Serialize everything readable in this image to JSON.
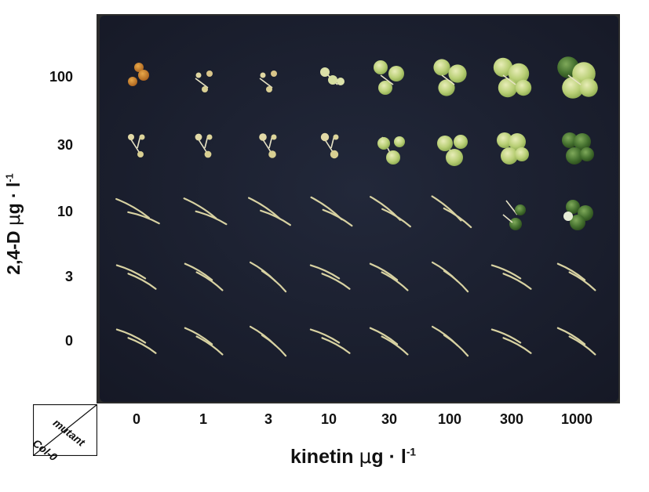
{
  "figure": {
    "y_axis": {
      "title_main": "2,4-D ",
      "title_mu": "μ",
      "title_unit": "g · l",
      "title_exp": "-1",
      "ticks": [
        "100",
        "30",
        "10",
        "3",
        "0"
      ]
    },
    "x_axis": {
      "title_main": "kinetin ",
      "title_mu": "μ",
      "title_unit": "g · l",
      "title_exp": "-1",
      "ticks": [
        "0",
        "1",
        "3",
        "10",
        "30",
        "100",
        "300",
        "1000"
      ]
    },
    "corner": {
      "upper_label": "mutant",
      "lower_label": "Col-0"
    },
    "colors": {
      "plate_background": "#1b1f2e",
      "outer_background": "#2a2a2a",
      "seedling_pale": "#d9d3a0",
      "callus_light": "#c8d98a",
      "callus_dark": "#3f6b2a",
      "callus_brown": "#c87a2a"
    }
  }
}
